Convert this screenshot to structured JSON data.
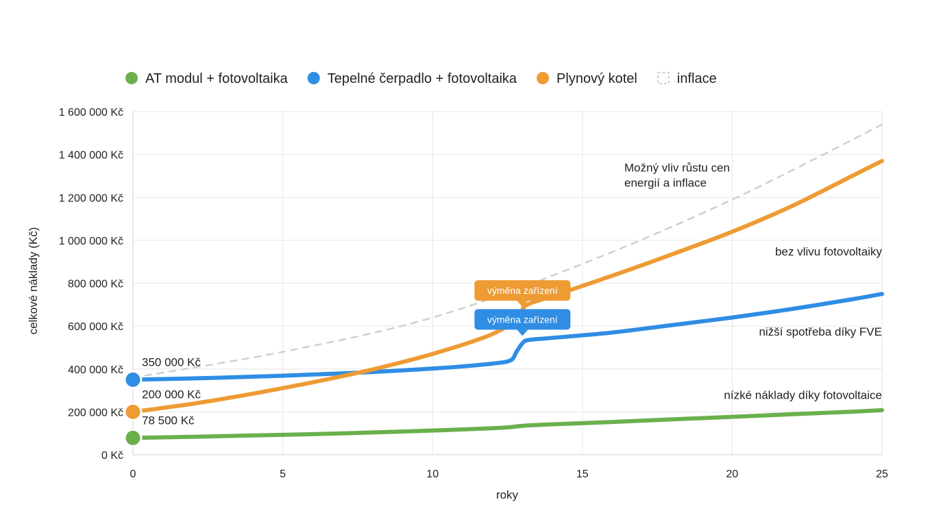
{
  "chart_data": {
    "type": "line",
    "xlabel": "roky",
    "ylabel": "celkové náklady (Kč)",
    "xlim": [
      0,
      25
    ],
    "ylim": [
      0,
      1600000
    ],
    "x_ticks": [
      0,
      5,
      10,
      15,
      20,
      25
    ],
    "x_tick_labels": [
      "0",
      "5",
      "10",
      "15",
      "20",
      "25"
    ],
    "y_ticks": [
      0,
      200000,
      400000,
      600000,
      800000,
      1000000,
      1200000,
      1400000,
      1600000
    ],
    "y_tick_labels": [
      "0 Kč",
      "200 000 Kč",
      "400 000 Kč",
      "600 000 Kč",
      "800 000 Kč",
      "1 000 000 Kč",
      "1 200 000 Kč",
      "1 400 000 Kč",
      "1 600 000 Kč"
    ],
    "grid": true,
    "legend_position": "top",
    "series": [
      {
        "name": "AT modul + fotovoltaika",
        "color": "#6ab04c",
        "style": "solid",
        "marker_color": "#6ab04c",
        "start_label": "78 500 Kč",
        "x": [
          0,
          2,
          4,
          6,
          8,
          10,
          12,
          12.6,
          13,
          14,
          16,
          18,
          20,
          22,
          24,
          25
        ],
        "y": [
          78500,
          84000,
          90000,
          96000,
          104000,
          113000,
          124000,
          129000,
          135000,
          142000,
          153000,
          165000,
          177000,
          189000,
          201000,
          208000
        ]
      },
      {
        "name": "Tepelné čerpadlo + fotovoltaika",
        "color": "#2f8de4",
        "style": "solid",
        "marker_color": "#2f8de4",
        "start_label": "350 000 Kč",
        "x": [
          0,
          2,
          4,
          6,
          8,
          10,
          11,
          12,
          12.6,
          12.8,
          13.0,
          13.2,
          14,
          16,
          18,
          20,
          22,
          24,
          25
        ],
        "y": [
          350000,
          356000,
          364000,
          374000,
          386000,
          402000,
          412000,
          425000,
          440000,
          480000,
          520000,
          535000,
          545000,
          570000,
          605000,
          640000,
          680000,
          725000,
          750000
        ]
      },
      {
        "name": "Plynový kotel",
        "color": "#ee9b34",
        "style": "solid",
        "marker_color": "#ee9b34",
        "start_label": "200 000 Kč",
        "x": [
          0,
          2,
          4,
          6,
          8,
          10,
          12,
          12.9,
          13.1,
          14,
          16,
          18,
          20,
          22,
          24,
          25
        ],
        "y": [
          200000,
          238000,
          285000,
          338000,
          398000,
          470000,
          563000,
          645000,
          695000,
          740000,
          835000,
          935000,
          1040000,
          1160000,
          1300000,
          1370000
        ]
      },
      {
        "name": "inflace",
        "color": "#cfcfcf",
        "style": "dashed",
        "x": [
          0,
          5,
          10,
          15,
          20,
          25
        ],
        "y": [
          360000,
          480000,
          640000,
          890000,
          1190000,
          1540000
        ]
      }
    ],
    "callouts": [
      {
        "text": "výměna zařízení",
        "color": "#ee9b34",
        "x": 13,
        "y": 680000
      },
      {
        "text": "výměna zařízení",
        "color": "#2f8de4",
        "x": 13,
        "y": 545000
      }
    ],
    "annotations": [
      {
        "lines": [
          "Možný vliv růstu cen",
          "energií a inflace"
        ],
        "x": 16.4,
        "y": 1320000,
        "anchor": "start"
      },
      {
        "lines": [
          "bez vlivu fotovoltaiky"
        ],
        "x": 25,
        "y": 930000,
        "anchor": "end"
      },
      {
        "lines": [
          "nižší spotřeba díky FVE"
        ],
        "x": 25,
        "y": 555000,
        "anchor": "end"
      },
      {
        "lines": [
          "nízké náklady díky fotovoltaice"
        ],
        "x": 25,
        "y": 260000,
        "anchor": "end"
      }
    ]
  }
}
